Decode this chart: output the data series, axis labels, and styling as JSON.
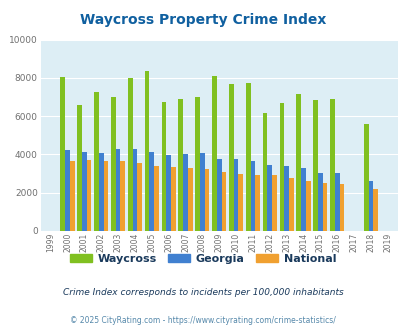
{
  "title": "Waycross Property Crime Index",
  "title_color": "#1060a0",
  "years": [
    1999,
    2000,
    2001,
    2002,
    2003,
    2004,
    2005,
    2006,
    2007,
    2008,
    2009,
    2010,
    2011,
    2012,
    2013,
    2014,
    2015,
    2016,
    2017,
    2018,
    2019
  ],
  "waycross": [
    0,
    8050,
    6600,
    7250,
    7000,
    8000,
    8350,
    6750,
    6900,
    7000,
    8100,
    7700,
    7750,
    6150,
    6700,
    7150,
    6850,
    6900,
    0,
    5600,
    0
  ],
  "georgia": [
    0,
    4250,
    4150,
    4100,
    4300,
    4300,
    4150,
    3950,
    4000,
    4050,
    3750,
    3750,
    3650,
    3450,
    3400,
    3300,
    3050,
    3050,
    0,
    2600,
    0
  ],
  "national": [
    0,
    3650,
    3700,
    3650,
    3650,
    3550,
    3400,
    3350,
    3300,
    3250,
    3100,
    3000,
    2950,
    2900,
    2750,
    2600,
    2500,
    2450,
    0,
    2200,
    0
  ],
  "waycross_color": "#80c020",
  "georgia_color": "#4080d0",
  "national_color": "#f0a030",
  "bg_color": "#ddeef5",
  "ylim": [
    0,
    10000
  ],
  "yticks": [
    0,
    2000,
    4000,
    6000,
    8000,
    10000
  ],
  "subtitle": "Crime Index corresponds to incidents per 100,000 inhabitants",
  "subtitle_color": "#1a3a5c",
  "copyright": "© 2025 CityRating.com - https://www.cityrating.com/crime-statistics/",
  "copyright_color": "#5588aa",
  "legend_labels": [
    "Waycross",
    "Georgia",
    "National"
  ],
  "bar_width": 0.28
}
